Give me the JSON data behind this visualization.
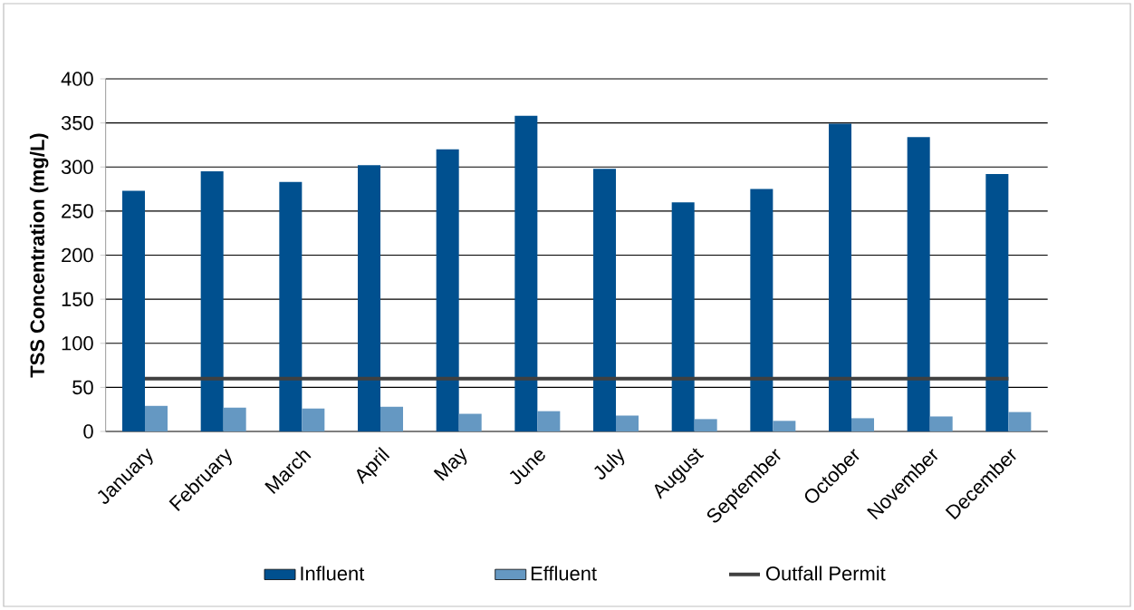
{
  "chart_data": {
    "type": "bar",
    "ylabel": "TSS Concentration (mg/L)",
    "categories": [
      "January",
      "February",
      "March",
      "April",
      "May",
      "June",
      "July",
      "August",
      "September",
      "October",
      "November",
      "December"
    ],
    "series": [
      {
        "name": "Influent",
        "color": "#00508f",
        "values": [
          273,
          295,
          283,
          302,
          320,
          358,
          298,
          260,
          275,
          349,
          334,
          292
        ]
      },
      {
        "name": "Effluent",
        "color": "#6598c2",
        "values": [
          29,
          27,
          26,
          28,
          20,
          23,
          18,
          14,
          12,
          15,
          17,
          22
        ]
      },
      {
        "name": "Outfall Permit",
        "type": "line",
        "color": "#404040",
        "values": [
          60,
          60,
          60,
          60,
          60,
          60,
          60,
          60,
          60,
          60,
          60,
          60
        ]
      }
    ],
    "ylim": [
      0,
      400
    ],
    "yticks": [
      0,
      50,
      100,
      150,
      200,
      250,
      300,
      350,
      400
    ],
    "grid": "y",
    "legend": "bottom"
  }
}
